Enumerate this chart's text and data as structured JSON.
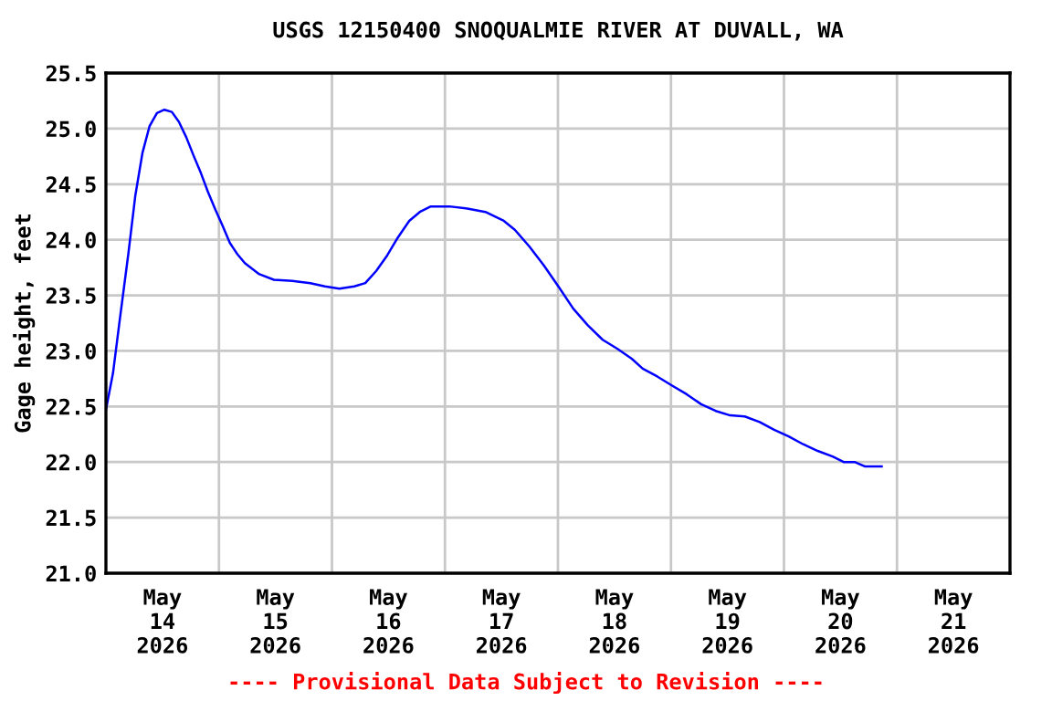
{
  "chart_data": {
    "type": "line",
    "title": "USGS 12150400 SNOQUALMIE RIVER AT DUVALL, WA",
    "ylabel": "Gage height, feet",
    "annotations": [
      "---- Provisional Data Subject to Revision ----"
    ],
    "series": [
      {
        "color": "#0000ff",
        "x": [
          "2026-05-14T00:00",
          "2026-05-14T01:30",
          "2026-05-14T03:00",
          "2026-05-14T04:45",
          "2026-05-14T06:15",
          "2026-05-14T07:45",
          "2026-05-14T09:15",
          "2026-05-14T10:50",
          "2026-05-14T12:25",
          "2026-05-14T14:00",
          "2026-05-14T15:30",
          "2026-05-14T17:05",
          "2026-05-14T18:35",
          "2026-05-14T20:10",
          "2026-05-14T21:40",
          "2026-05-14T23:15",
          "2026-05-15T00:50",
          "2026-05-15T02:20",
          "2026-05-15T03:55",
          "2026-05-15T05:30",
          "2026-05-15T07:00",
          "2026-05-15T08:35",
          "2026-05-15T11:40",
          "2026-05-15T15:35",
          "2026-05-15T19:25",
          "2026-05-15T22:30",
          "2026-05-16T01:35",
          "2026-05-16T04:45",
          "2026-05-16T07:05",
          "2026-05-16T09:25",
          "2026-05-16T11:45",
          "2026-05-16T14:00",
          "2026-05-16T16:25",
          "2026-05-16T18:40",
          "2026-05-16T21:00",
          "2026-05-17T00:55",
          "2026-05-17T04:45",
          "2026-05-17T08:35",
          "2026-05-17T12:30",
          "2026-05-17T14:50",
          "2026-05-17T17:55",
          "2026-05-17T21:00",
          "2026-05-18T00:05",
          "2026-05-18T03:15",
          "2026-05-18T06:20",
          "2026-05-18T09:30",
          "2026-05-18T12:35",
          "2026-05-18T15:40",
          "2026-05-18T18:00",
          "2026-05-18T21:05",
          "2026-05-19T00:10",
          "2026-05-19T03:20",
          "2026-05-19T06:25",
          "2026-05-19T09:30",
          "2026-05-19T12:35",
          "2026-05-19T15:40",
          "2026-05-19T18:50",
          "2026-05-19T21:55",
          "2026-05-20T01:00",
          "2026-05-20T04:05",
          "2026-05-20T07:10",
          "2026-05-20T10:20",
          "2026-05-20T12:40",
          "2026-05-20T15:00",
          "2026-05-20T17:15",
          "2026-05-20T20:45"
        ],
        "values": [
          22.47,
          22.8,
          23.3,
          23.87,
          24.4,
          24.78,
          25.02,
          25.14,
          25.17,
          25.15,
          25.06,
          24.92,
          24.76,
          24.6,
          24.43,
          24.27,
          24.12,
          23.97,
          23.87,
          23.79,
          23.74,
          23.69,
          23.64,
          23.63,
          23.61,
          23.58,
          23.56,
          23.58,
          23.61,
          23.72,
          23.86,
          24.02,
          24.17,
          24.25,
          24.3,
          24.3,
          24.28,
          24.25,
          24.17,
          24.09,
          23.94,
          23.77,
          23.58,
          23.38,
          23.23,
          23.1,
          23.02,
          22.93,
          22.84,
          22.77,
          22.69,
          22.61,
          22.52,
          22.46,
          22.42,
          22.41,
          22.36,
          22.29,
          22.23,
          22.16,
          22.1,
          22.05,
          22.0,
          22.0,
          21.96,
          21.96
        ]
      }
    ],
    "xlim": [
      "2026-05-14T00:00",
      "2026-05-22T00:00"
    ],
    "xticks": [
      {
        "value": "2026-05-14T12:00",
        "label": "May\n14\n2026"
      },
      {
        "value": "2026-05-15T00:00",
        "label": null
      },
      {
        "value": "2026-05-15T12:00",
        "label": "May\n15\n2026"
      },
      {
        "value": "2026-05-16T00:00",
        "label": null
      },
      {
        "value": "2026-05-16T12:00",
        "label": "May\n16\n2026"
      },
      {
        "value": "2026-05-17T00:00",
        "label": null
      },
      {
        "value": "2026-05-17T12:00",
        "label": "May\n17\n2026"
      },
      {
        "value": "2026-05-18T00:00",
        "label": null
      },
      {
        "value": "2026-05-18T12:00",
        "label": "May\n18\n2026"
      },
      {
        "value": "2026-05-19T00:00",
        "label": null
      },
      {
        "value": "2026-05-19T12:00",
        "label": "May\n19\n2026"
      },
      {
        "value": "2026-05-20T00:00",
        "label": null
      },
      {
        "value": "2026-05-20T12:00",
        "label": "May\n20\n2026"
      },
      {
        "value": "2026-05-21T00:00",
        "label": null
      },
      {
        "value": "2026-05-21T12:00",
        "label": "May\n21\n2026"
      }
    ],
    "ylim": [
      21.0,
      25.5
    ],
    "yticks": [
      {
        "value": 21,
        "label": "21.0"
      },
      21.5,
      {
        "value": 22,
        "label": "22.0"
      },
      22.5,
      {
        "value": 23,
        "label": "23.0"
      },
      23.5,
      {
        "value": 24,
        "label": "24.0"
      },
      24.5,
      {
        "value": 25,
        "label": "25.0"
      },
      25.5
    ],
    "grid": true
  }
}
